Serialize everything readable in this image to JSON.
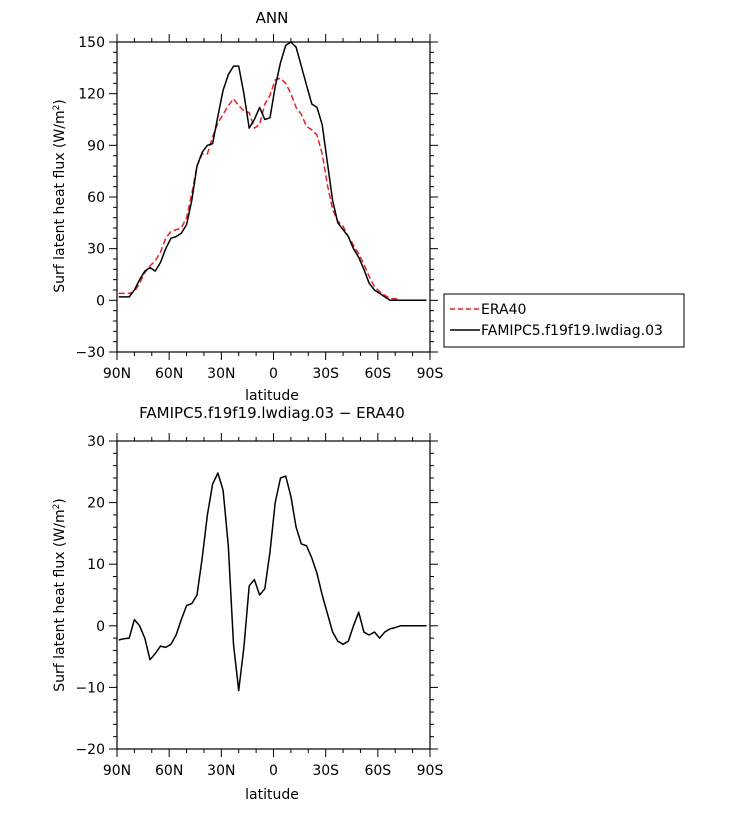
{
  "chart_data": [
    {
      "type": "line",
      "title": "ANN",
      "xlabel": "latitude",
      "ylabel": "Surf latent heat flux (W/m²)",
      "ylabel_base": "Surf latent heat flux (W/m",
      "ylabel_sup": "2",
      "ylabel_tail": ")",
      "xlim": [
        90,
        -90
      ],
      "ylim": [
        -30,
        150
      ],
      "xticks": [
        90,
        60,
        30,
        0,
        -30,
        -60,
        -90
      ],
      "xtick_labels": [
        "90N",
        "60N",
        "30N",
        "0",
        "30S",
        "60S",
        "90S"
      ],
      "yticks": [
        -30,
        0,
        30,
        60,
        90,
        120,
        150
      ],
      "ytick_labels": [
        "−30",
        "0",
        "30",
        "60",
        "90",
        "120",
        "150"
      ],
      "legend_position": "right",
      "series": [
        {
          "name": "ERA40",
          "color": "#e8202a",
          "dash": "dashed",
          "x": [
            89,
            86,
            83,
            80,
            77,
            74,
            71,
            68,
            65,
            62,
            59,
            56,
            53,
            50,
            47,
            44,
            41,
            38,
            35,
            32,
            29,
            26,
            23,
            20,
            17,
            14,
            11,
            8,
            5,
            2,
            -1,
            -4,
            -7,
            -10,
            -13,
            -16,
            -19,
            -22,
            -25,
            -28,
            -31,
            -34,
            -37,
            -40,
            -43,
            -46,
            -49,
            -52,
            -55,
            -58,
            -61,
            -64,
            -67,
            -70,
            -73,
            -76,
            -79,
            -82,
            -85,
            -88
          ],
          "y": [
            4,
            4,
            4,
            5,
            10,
            16,
            20,
            23,
            28,
            36,
            40,
            41,
            42,
            48,
            62,
            78,
            85,
            85,
            95,
            103,
            108,
            113,
            117,
            113,
            110,
            109,
            100,
            102,
            114,
            119,
            128,
            129,
            126,
            120,
            112,
            108,
            101,
            99,
            96,
            85,
            67,
            53,
            46,
            43,
            37,
            32,
            27,
            21,
            14,
            8,
            5,
            3,
            1,
            1,
            0,
            0,
            0,
            0,
            0,
            0
          ]
        },
        {
          "name": "FAMIPC5.f19f19.lwdiag.03",
          "color": "#000000",
          "dash": "solid",
          "x": [
            89,
            86,
            83,
            80,
            77,
            74,
            71,
            68,
            65,
            62,
            59,
            56,
            53,
            50,
            47,
            44,
            41,
            38,
            35,
            32,
            29,
            26,
            23,
            20,
            17,
            14,
            11,
            8,
            5,
            2,
            -1,
            -4,
            -7,
            -10,
            -13,
            -16,
            -19,
            -22,
            -25,
            -28,
            -31,
            -34,
            -37,
            -40,
            -43,
            -46,
            -49,
            -52,
            -55,
            -58,
            -61,
            -64,
            -67,
            -70,
            -73,
            -76,
            -79,
            -82,
            -85,
            -88
          ],
          "y": [
            2,
            2,
            2,
            6,
            12,
            17,
            19,
            17,
            22,
            30,
            36,
            37,
            39,
            44,
            58,
            78,
            86,
            90,
            91,
            107,
            122,
            131,
            136,
            136,
            120,
            100,
            105,
            112,
            105,
            106,
            124,
            138,
            148,
            150,
            147,
            136,
            125,
            114,
            112,
            102,
            80,
            58,
            45,
            41,
            37,
            30,
            25,
            18,
            10,
            6,
            4,
            2,
            0,
            0,
            0,
            0,
            0,
            0,
            0,
            0
          ]
        }
      ]
    },
    {
      "type": "line",
      "title": "FAMIPC5.f19f19.lwdiag.03 − ERA40",
      "xlabel": "latitude",
      "ylabel": "Surf latent heat flux (W/m²)",
      "ylabel_base": "Surf latent heat flux (W/m",
      "ylabel_sup": "2",
      "ylabel_tail": ")",
      "xlim": [
        90,
        -90
      ],
      "ylim": [
        -20,
        30
      ],
      "xticks": [
        90,
        60,
        30,
        0,
        -30,
        -60,
        -90
      ],
      "xtick_labels": [
        "90N",
        "60N",
        "30N",
        "0",
        "30S",
        "60S",
        "90S"
      ],
      "yticks": [
        -20,
        -10,
        0,
        10,
        20,
        30
      ],
      "ytick_labels": [
        "−20",
        "−10",
        "0",
        "10",
        "20",
        "30"
      ],
      "series": [
        {
          "color": "#000000",
          "dash": "solid",
          "x": [
            89,
            86,
            83,
            80,
            77,
            74,
            71,
            68,
            65,
            62,
            59,
            56,
            53,
            50,
            47,
            44,
            41,
            38,
            35,
            32,
            29,
            26,
            23,
            20,
            17,
            14,
            11,
            8,
            5,
            2,
            -1,
            -4,
            -7,
            -10,
            -13,
            -16,
            -19,
            -22,
            -25,
            -28,
            -31,
            -34,
            -37,
            -40,
            -43,
            -46,
            -49,
            -52,
            -55,
            -58,
            -61,
            -64,
            -67,
            -70,
            -73,
            -76,
            -79,
            -82,
            -85,
            -88
          ],
          "y": [
            -2.3,
            -2.1,
            -2.0,
            1.0,
            0.0,
            -2.0,
            -5.5,
            -4.5,
            -3.3,
            -3.5,
            -3.0,
            -1.5,
            1.0,
            3.3,
            3.6,
            5.0,
            11.0,
            18.0,
            23.0,
            24.8,
            22.0,
            13.0,
            -3.0,
            -10.5,
            -3.5,
            6.5,
            7.5,
            5.0,
            6.0,
            12.0,
            20.0,
            24.0,
            24.3,
            21.0,
            16.0,
            13.3,
            13.0,
            11.0,
            8.5,
            5.0,
            2.0,
            -1.0,
            -2.5,
            -3.0,
            -2.5,
            0.0,
            2.2,
            -1.0,
            -1.5,
            -1.0,
            -2.0,
            -1.0,
            -0.5,
            -0.3,
            0.0,
            0.0,
            0.0,
            0.0,
            0.0,
            0.0
          ]
        }
      ]
    }
  ]
}
